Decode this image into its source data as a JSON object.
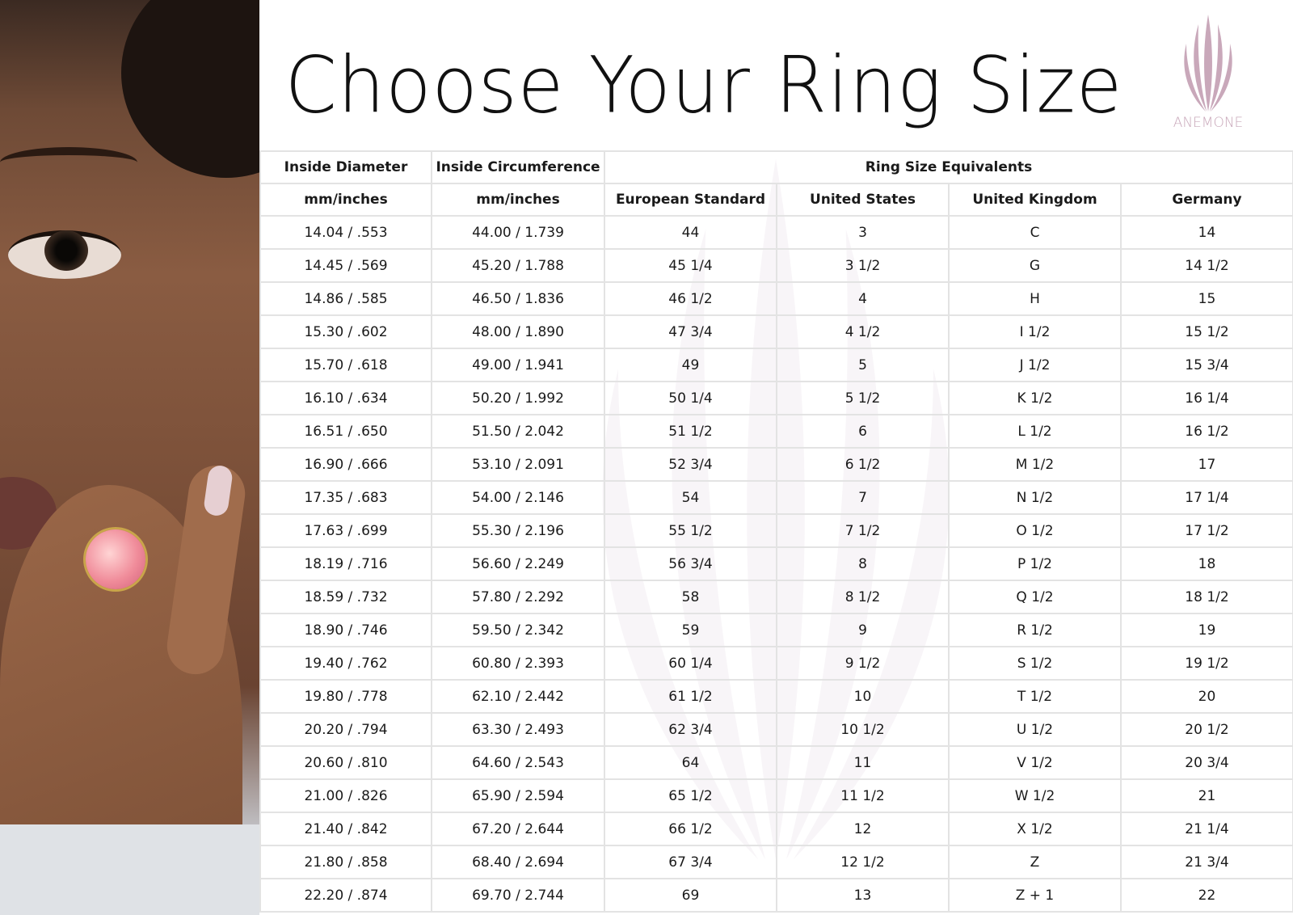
{
  "title": "Choose Your Ring Size",
  "brand": {
    "name": "ANEMONE",
    "color": "#c9a8ba"
  },
  "table": {
    "header_row1": [
      "Inside Diameter",
      "Inside Circumference",
      "Ring Size Equivalents"
    ],
    "header_row2": [
      "mm/inches",
      "mm/inches",
      "European Standard",
      "United States",
      "United Kingdom",
      "Germany"
    ],
    "rows": [
      [
        "14.04 / .553",
        "44.00 / 1.739",
        "44",
        "3",
        "C",
        "14"
      ],
      [
        "14.45 / .569",
        "45.20 / 1.788",
        "45 1/4",
        "3 1/2",
        "G",
        "14 1/2"
      ],
      [
        "14.86 / .585",
        "46.50 / 1.836",
        "46 1/2",
        "4",
        "H",
        "15"
      ],
      [
        "15.30 / .602",
        "48.00 / 1.890",
        "47 3/4",
        "4 1/2",
        "I 1/2",
        "15 1/2"
      ],
      [
        "15.70 / .618",
        "49.00 / 1.941",
        "49",
        "5",
        "J 1/2",
        "15 3/4"
      ],
      [
        "16.10  / .634",
        "50.20 / 1.992",
        "50 1/4",
        "5 1/2",
        "K 1/2",
        "16 1/4"
      ],
      [
        "16.51 / .650",
        "51.50 / 2.042",
        "51 1/2",
        "6",
        "L 1/2",
        "16 1/2"
      ],
      [
        "16.90 / .666",
        "53.10 / 2.091",
        "52 3/4",
        "6 1/2",
        "M 1/2",
        "17"
      ],
      [
        "17.35 / .683",
        "54.00 / 2.146",
        "54",
        "7",
        "N 1/2",
        "17 1/4"
      ],
      [
        "17.63 / .699",
        "55.30 / 2.196",
        "55 1/2",
        "7 1/2",
        "O 1/2",
        "17 1/2"
      ],
      [
        "18.19 / .716",
        "56.60 / 2.249",
        "56 3/4",
        "8",
        "P 1/2",
        "18"
      ],
      [
        "18.59 / .732",
        "57.80 / 2.292",
        "58",
        "8 1/2",
        "Q 1/2",
        "18 1/2"
      ],
      [
        "18.90 / .746",
        "59.50 / 2.342",
        "59",
        "9",
        "R 1/2",
        "19"
      ],
      [
        "19.40 / .762",
        "60.80 / 2.393",
        "60 1/4",
        "9 1/2",
        "S 1/2",
        "19 1/2"
      ],
      [
        "19.80 / .778",
        "62.10 / 2.442",
        "61 1/2",
        "10",
        "T 1/2",
        "20"
      ],
      [
        "20.20 / .794",
        "63.30 / 2.493",
        "62 3/4",
        "10 1/2",
        "U 1/2",
        "20 1/2"
      ],
      [
        "20.60 / .810",
        "64.60 / 2.543",
        "64",
        "11",
        "V 1/2",
        "20 3/4"
      ],
      [
        "21.00 / .826",
        "65.90 / 2.594",
        "65 1/2",
        "11 1/2",
        "W 1/2",
        "21"
      ],
      [
        "21.40 / .842",
        "67.20 / 2.644",
        "66 1/2",
        "12",
        "X 1/2",
        "21 1/4"
      ],
      [
        "21.80 / .858",
        "68.40 / 2.694",
        "67 3/4",
        "12 1/2",
        "Z",
        "21 3/4"
      ],
      [
        "22.20 / .874",
        "69.70 / 2.744",
        "69",
        "13",
        "Z + 1",
        "22"
      ]
    ]
  }
}
